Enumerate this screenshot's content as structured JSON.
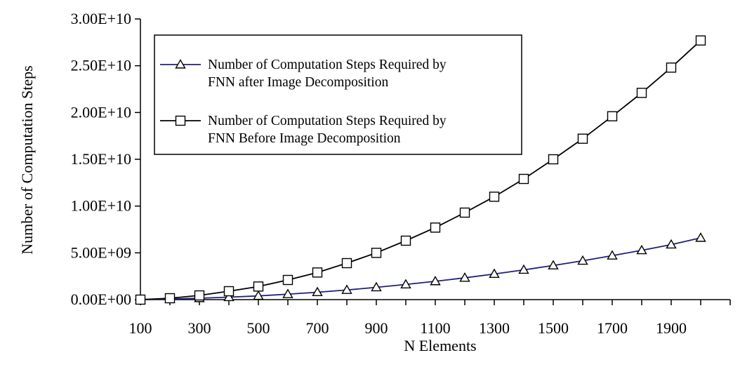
{
  "chart_data": {
    "type": "line",
    "title": "",
    "xlabel": "N Elements",
    "ylabel": "Number of Computation Steps",
    "x": [
      100,
      200,
      300,
      400,
      500,
      600,
      700,
      800,
      900,
      1000,
      1100,
      1200,
      1300,
      1400,
      1500,
      1600,
      1700,
      1800,
      1900,
      2000
    ],
    "x_tick_labels": [
      "100",
      "300",
      "500",
      "700",
      "900",
      "1100",
      "1300",
      "1500",
      "1700",
      "1900"
    ],
    "y_tick_labels": [
      "0.00E+00",
      "5.00E+09",
      "1.00E+10",
      "1.50E+10",
      "2.00E+10",
      "2.50E+10",
      "3.00E+10"
    ],
    "ylim": [
      0,
      30000000000
    ],
    "grid": false,
    "legend_position": "top-left",
    "series": [
      {
        "name": "Number of Computation Steps Required by FNN after Image Decomposition",
        "legend_lines": [
          "Number of Computation Steps Required by",
          "FNN after Image Decomposition"
        ],
        "marker": "triangle",
        "color": "#1f1f7a",
        "values": [
          0,
          60000000,
          150000000,
          260000000,
          400000000,
          580000000,
          790000000,
          1030000000,
          1310000000,
          1620000000,
          1960000000,
          2330000000,
          2740000000,
          3180000000,
          3650000000,
          4150000000,
          4700000000,
          5270000000,
          5880000000,
          6600000000
        ]
      },
      {
        "name": "Number of Computation Steps Required by FNN Before Image Decomposition",
        "legend_lines": [
          "Number of Computation Steps Required by",
          "FNN Before Image Decomposition"
        ],
        "marker": "square",
        "color": "#000000",
        "values": [
          0,
          150000000,
          450000000,
          900000000,
          1400000000,
          2100000000,
          2900000000,
          3900000000,
          5000000000,
          6300000000,
          7700000000,
          9300000000,
          11000000000,
          12900000000,
          15000000000,
          17200000000,
          19600000000,
          22100000000,
          24800000000,
          27700000000
        ]
      }
    ]
  }
}
